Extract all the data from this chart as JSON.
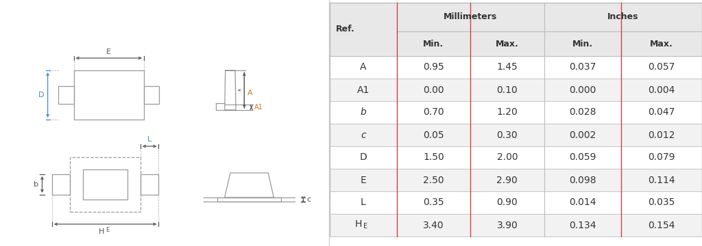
{
  "table_headers": [
    "Ref.",
    "Min.",
    "Max.",
    "Min.",
    "Max."
  ],
  "col_group_headers": [
    "Millimeters",
    "Inches"
  ],
  "rows": [
    [
      "A",
      "0.95",
      "1.45",
      "0.037",
      "0.057"
    ],
    [
      "A1",
      "0.00",
      "0.10",
      "0.000",
      "0.004"
    ],
    [
      "b",
      "0.70",
      "1.20",
      "0.028",
      "0.047"
    ],
    [
      "c",
      "0.05",
      "0.30",
      "0.002",
      "0.012"
    ],
    [
      "D",
      "1.50",
      "2.00",
      "0.059",
      "0.079"
    ],
    [
      "E",
      "2.50",
      "2.90",
      "0.098",
      "0.114"
    ],
    [
      "L",
      "0.35",
      "0.90",
      "0.014",
      "0.035"
    ],
    [
      "HE",
      "3.40",
      "3.90",
      "0.134",
      "0.154"
    ]
  ],
  "bg_color": "#ffffff",
  "header_bg": "#e8e8e8",
  "row_alt_bg": "#f2f2f2",
  "row_bg": "#ffffff",
  "border_color": "#bbbbbb",
  "red_line_color": "#d04040",
  "text_color": "#333333",
  "diagram_line_color": "#999999",
  "diagram_dim_color": "#555555",
  "orange_color": "#d07820",
  "blue_color": "#4488cc",
  "divider_color": "#cccccc"
}
